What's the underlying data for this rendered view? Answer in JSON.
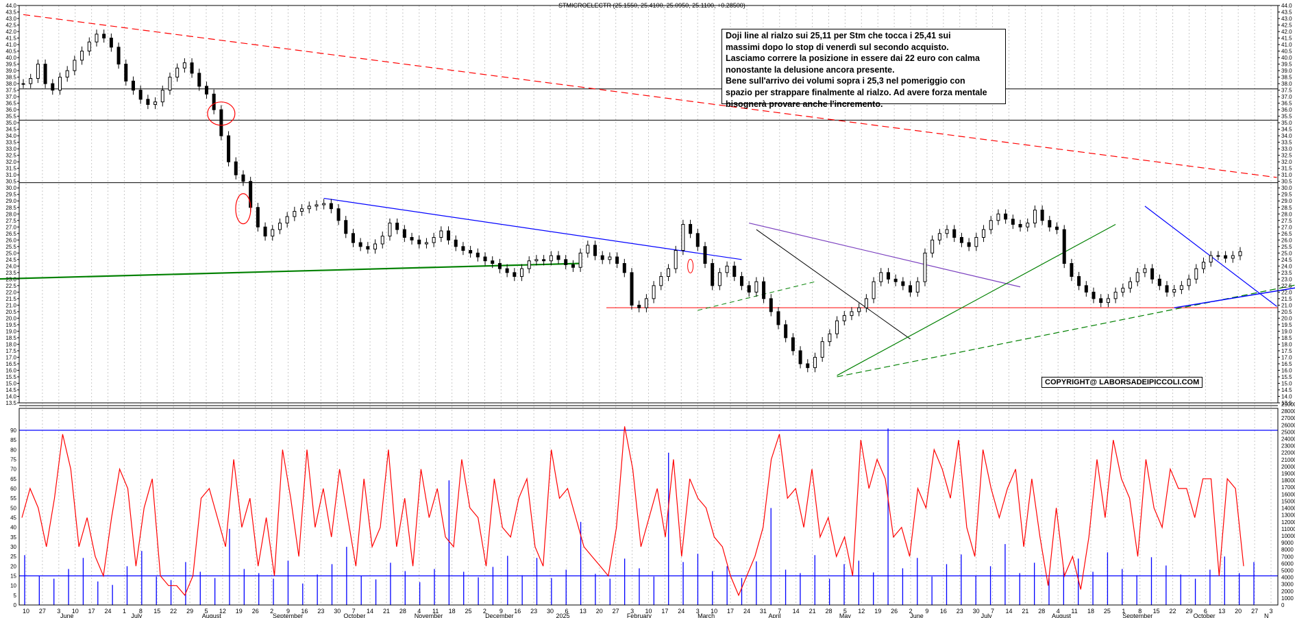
{
  "header": {
    "instrument_line": "STMICROELECTR (25.1550, 25.4100, 25.0950, 25.1100, +0.28500)"
  },
  "annotation": {
    "lines": [
      "Doji line al rialzo sui 25,11 per Stm che tocca i 25,41 sui",
      "massimi dopo lo stop di venerdì sul secondo acquisto.",
      "Lasciamo correre la posizione in essere dai 22 euro con calma",
      "nonostante la delusione ancora presente.",
      "Bene sull'arrivo dei volumi sopra i 25,3 nel pomeriggio con",
      "spazio per strappare finalmente al rialzo. Ad avere forza mentale",
      "bisognerà provare anche l'incremento."
    ]
  },
  "copyright": "COPYRIGHT@ LABORSADEIPICCOLI.COM",
  "colors": {
    "candle": "#000000",
    "oscillator": "#ff0000",
    "volume": "#0000ff",
    "resistance_red": "#ff0000",
    "support_green": "#008000",
    "blue_line": "#0000ff",
    "grid": "#c8c8c8"
  },
  "chart_data": {
    "type": "candlestick",
    "instrument": "STMICROELECTR",
    "last_bar": {
      "open": 25.155,
      "high": 25.41,
      "low": 25.095,
      "close": 25.11,
      "change": 0.285
    },
    "price_axis": {
      "min": 13.5,
      "max": 44.0,
      "step": 0.5
    },
    "oscillator_axis": {
      "min": 0,
      "max": 90,
      "step": 5,
      "levels": [
        15,
        90
      ]
    },
    "volume_axis": {
      "min": 0,
      "max": 29000,
      "step": 1000
    },
    "horizontal_levels": [
      37.6,
      35.2,
      30.4,
      20.8
    ],
    "month_labels": [
      "June",
      "July",
      "August",
      "September",
      "October",
      "November",
      "December",
      "2025",
      "February",
      "March",
      "April",
      "May",
      "June",
      "July",
      "August",
      "September",
      "October",
      "N"
    ],
    "day_labels": [
      "10",
      "27",
      "3",
      "10",
      "17",
      "24",
      "1",
      "8",
      "15",
      "22",
      "29",
      "5",
      "12",
      "19",
      "26",
      "2",
      "9",
      "16",
      "23",
      "30",
      "7",
      "14",
      "21",
      "28",
      "4",
      "11",
      "18",
      "25",
      "2",
      "9",
      "16",
      "23",
      "30",
      "6",
      "13",
      "20",
      "27",
      "3",
      "10",
      "17",
      "24",
      "3",
      "10",
      "17",
      "24",
      "31",
      "7",
      "14",
      "21",
      "28",
      "5",
      "12",
      "19",
      "26",
      "2",
      "9",
      "16",
      "23",
      "30",
      "7",
      "14",
      "21",
      "28",
      "4",
      "11",
      "18",
      "25",
      "1",
      "8",
      "15",
      "22",
      "29",
      "6",
      "13",
      "20",
      "27",
      "3"
    ],
    "price_series": [
      38,
      38.4,
      39.5,
      38,
      37.5,
      38.5,
      39,
      39.8,
      40.5,
      41.2,
      41.8,
      41.5,
      40.8,
      39.5,
      38.2,
      37.5,
      36.8,
      36.4,
      36.6,
      37.5,
      38.5,
      39.2,
      39.6,
      38.8,
      37.8,
      37.2,
      36,
      34,
      32,
      31,
      30.5,
      28.5,
      27,
      26.3,
      26.8,
      27.3,
      27.8,
      28.2,
      28.4,
      28.6,
      28.7,
      28.8,
      28.4,
      27.5,
      26.5,
      25.8,
      25.5,
      25.3,
      25.7,
      26.3,
      27.3,
      26.8,
      26.2,
      26,
      25.7,
      25.8,
      26.2,
      26.7,
      26,
      25.5,
      25.2,
      25,
      24.7,
      24.4,
      24.2,
      23.8,
      23.5,
      23.2,
      23.8,
      24.4,
      24.5,
      24.4,
      24.8,
      24.5,
      24.1,
      23.9,
      25,
      25.6,
      24.8,
      24.5,
      24.7,
      24.2,
      23.5,
      21,
      20.8,
      21.5,
      22.5,
      23.2,
      23.8,
      25.2,
      27.2,
      26.5,
      25.5,
      24.2,
      22.5,
      23.5,
      24,
      23.2,
      22.5,
      22,
      22.8,
      21.5,
      20.5,
      19.5,
      18.5,
      17.5,
      16.5,
      16.2,
      17,
      18.2,
      18.8,
      19.8,
      20.2,
      20.5,
      20.8,
      21.5,
      22.8,
      23.5,
      23,
      22.8,
      22.5,
      22,
      22.8,
      25,
      26,
      26.5,
      26.8,
      26.2,
      25.8,
      25.5,
      26.2,
      26.8,
      27.5,
      28,
      27.6,
      27.2,
      27,
      27.3,
      28.3,
      27.5,
      27,
      26.8,
      24.2,
      23.2,
      22.5,
      22,
      21.5,
      21.2,
      21.5,
      22,
      22.3,
      22.8,
      23.5,
      23.8,
      23,
      22.5,
      22,
      22.2,
      22.5,
      23,
      23.8,
      24.3,
      24.8,
      24.8,
      24.6,
      24.8,
      25.11
    ],
    "oscillator_series": [
      45,
      60,
      50,
      30,
      55,
      88,
      70,
      30,
      45,
      25,
      15,
      45,
      70,
      60,
      20,
      50,
      65,
      15,
      10,
      10,
      5,
      15,
      55,
      60,
      45,
      30,
      75,
      40,
      55,
      20,
      45,
      15,
      80,
      55,
      25,
      80,
      40,
      60,
      35,
      70,
      45,
      20,
      65,
      30,
      40,
      80,
      30,
      55,
      20,
      70,
      45,
      60,
      35,
      30,
      75,
      50,
      45,
      20,
      65,
      40,
      35,
      55,
      65,
      30,
      20,
      80,
      55,
      60,
      45,
      30,
      25,
      20,
      15,
      40,
      92,
      70,
      30,
      45,
      60,
      35,
      75,
      25,
      65,
      55,
      50,
      35,
      30,
      15,
      5,
      15,
      25,
      40,
      75,
      88,
      55,
      60,
      40,
      70,
      35,
      45,
      25,
      35,
      15,
      85,
      60,
      75,
      65,
      35,
      40,
      25,
      60,
      50,
      80,
      70,
      55,
      85,
      40,
      25,
      80,
      60,
      45,
      60,
      70,
      30,
      65,
      35,
      10,
      50,
      15,
      25,
      8,
      35,
      75,
      45,
      85,
      65,
      55,
      25,
      75,
      50,
      40,
      70,
      60,
      60,
      45,
      65,
      65,
      15,
      65,
      60,
      20
    ],
    "volume_series": [
      7200,
      4200,
      3800,
      5200,
      6800,
      3400,
      2900,
      5600,
      7800,
      4100,
      3600,
      6200,
      4800,
      3900,
      11000,
      5200,
      4600,
      3800,
      6400,
      3100,
      4400,
      5900,
      8400,
      4200,
      3700,
      6100,
      4900,
      3300,
      5200,
      18000,
      4800,
      4000,
      5500,
      7100,
      4300,
      6800,
      3900,
      5100,
      12000,
      4500,
      3800,
      6700,
      5300,
      4100,
      22000,
      6200,
      7400,
      4900,
      5600,
      3900,
      6300,
      14000,
      5100,
      4600,
      7200,
      3800,
      5900,
      6400,
      4700,
      25500,
      5300,
      6800,
      4100,
      5900,
      7300,
      4200,
      5600,
      8800,
      4600,
      6100,
      3900,
      5400,
      6700,
      4800,
      7600,
      5200,
      4300,
      6900,
      5700,
      4400,
      3800,
      5100,
      7000,
      4600,
      6200
    ]
  }
}
